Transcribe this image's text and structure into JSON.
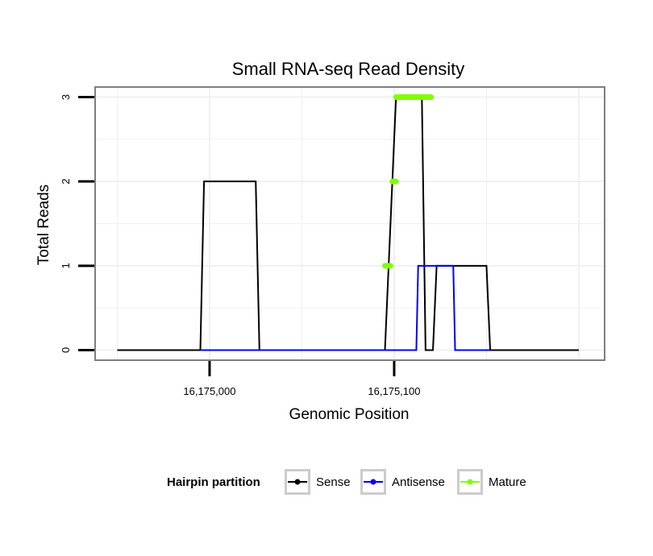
{
  "chart_data": {
    "type": "line",
    "title": "Small RNA-seq Read Density",
    "xlabel": "Genomic Position",
    "ylabel": "Total Reads",
    "xlim": [
      16174938,
      16175214
    ],
    "ylim": [
      -0.12,
      3.12
    ],
    "x_ticks": [
      16175000,
      16175100
    ],
    "x_tick_labels": [
      "16,175,000",
      "16,175,100"
    ],
    "y_ticks": [
      0,
      1,
      2,
      3
    ],
    "y_tick_labels": [
      "0",
      "1",
      "2",
      "3"
    ],
    "grid": true,
    "legend_title": "Hairpin partition",
    "legend_position": "bottom",
    "series": [
      {
        "name": "Sense",
        "color": "#000000",
        "x": [
          16174950,
          16174995,
          16174997,
          16175025,
          16175027,
          16175095,
          16175097,
          16175101,
          16175115,
          16175117,
          16175121,
          16175123,
          16175150,
          16175152,
          16175200
        ],
        "y": [
          0,
          0,
          2,
          2,
          0,
          0,
          1,
          3,
          3,
          0,
          0,
          1,
          1,
          0,
          0
        ]
      },
      {
        "name": "Antisense",
        "color": "#0000ff",
        "x": [
          16174995,
          16175025,
          16175112,
          16175113,
          16175132,
          16175133,
          16175152
        ],
        "y": [
          0,
          0,
          0,
          1,
          1,
          0,
          0
        ]
      },
      {
        "name": "Mature",
        "color": "#7fff00",
        "segments": [
          {
            "x": [
              16175095,
              16175098
            ],
            "y": [
              1,
              1
            ]
          },
          {
            "x": [
              16175099,
              16175101
            ],
            "y": [
              2,
              2
            ]
          },
          {
            "x": [
              16175101,
              16175120
            ],
            "y": [
              3,
              3
            ]
          }
        ]
      }
    ]
  }
}
